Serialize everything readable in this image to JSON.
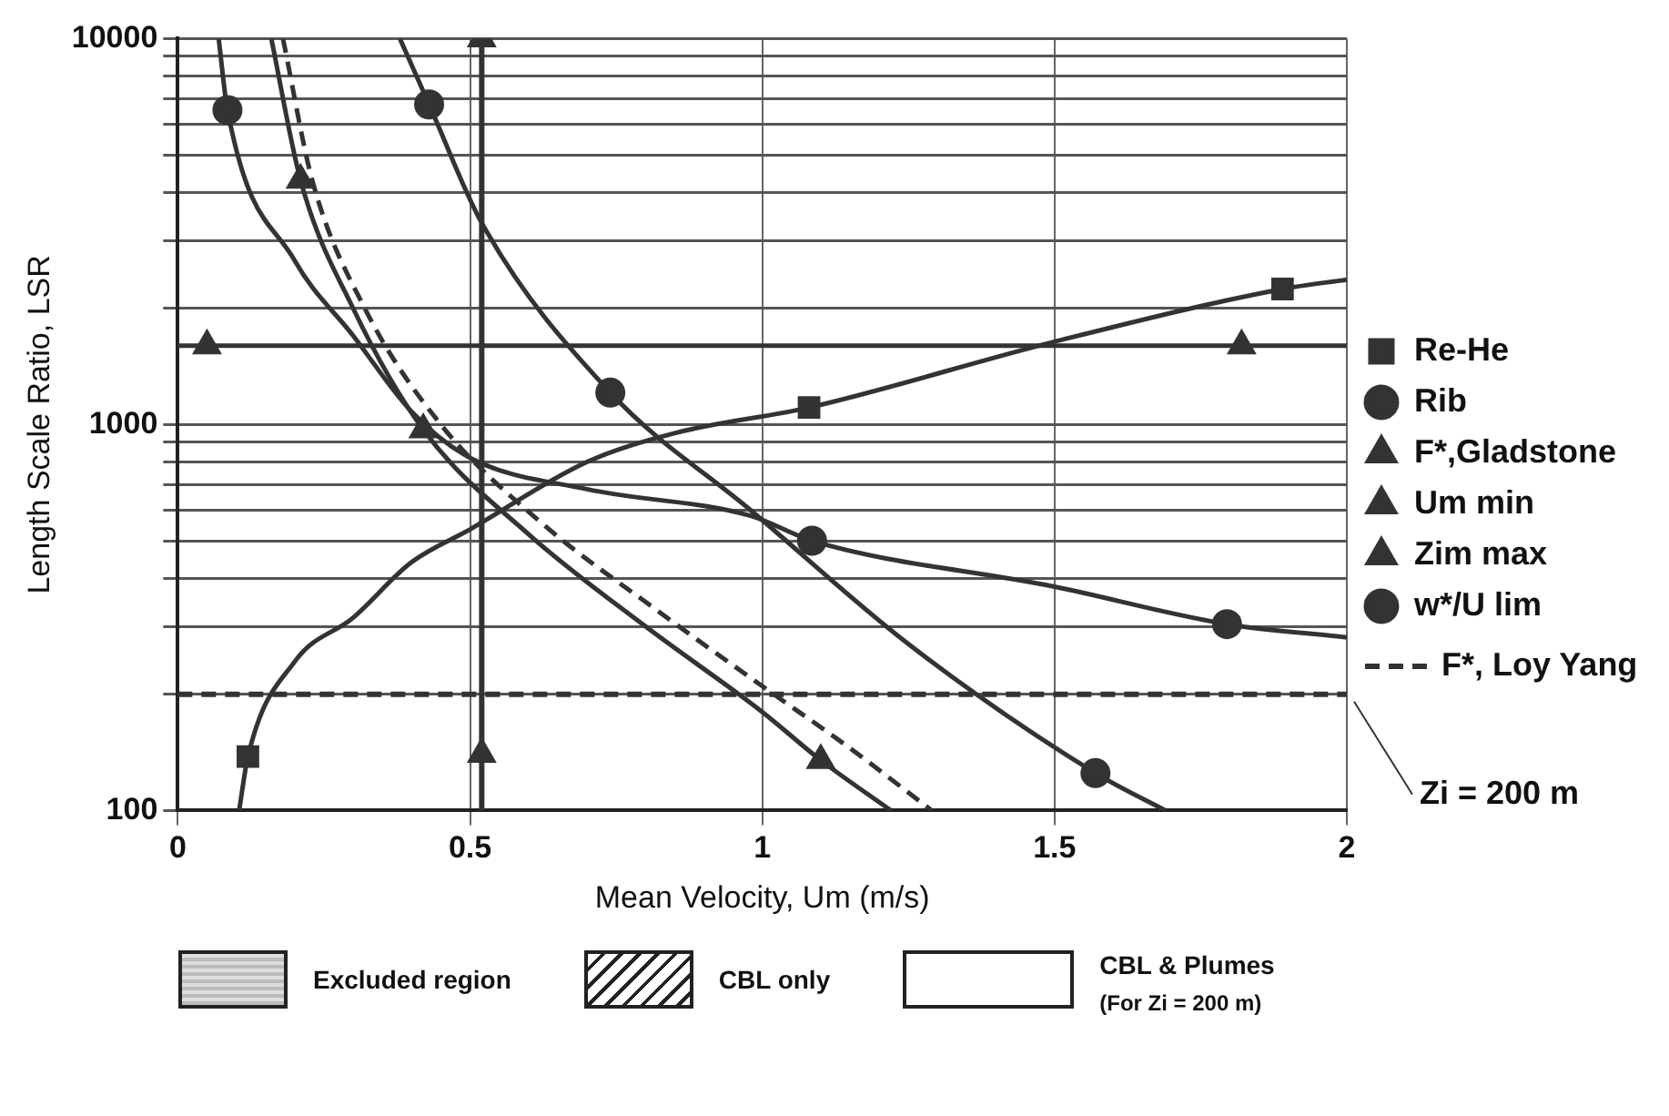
{
  "chart_data": {
    "type": "line",
    "xlabel": "Mean Velocity, Um (m/s)",
    "ylabel": "Length Scale Ratio, LSR",
    "xlim": [
      0,
      2
    ],
    "xticks": [
      0,
      0.5,
      1,
      1.5,
      2
    ],
    "ylim": [
      100,
      10000
    ],
    "log": true,
    "yticks": [
      100,
      {
        "value": 200,
        "label": null
      },
      {
        "value": 300,
        "label": null
      },
      {
        "value": 400,
        "label": null
      },
      {
        "value": 500,
        "label": null
      },
      {
        "value": 600,
        "label": null
      },
      {
        "value": 700,
        "label": null
      },
      {
        "value": 800,
        "label": null
      },
      {
        "value": 900,
        "label": null
      },
      1000,
      {
        "value": 2000,
        "label": null
      },
      {
        "value": 3000,
        "label": null
      },
      {
        "value": 4000,
        "label": null
      },
      {
        "value": 5000,
        "label": null
      },
      {
        "value": 6000,
        "label": null
      },
      {
        "value": 7000,
        "label": null
      },
      {
        "value": 8000,
        "label": null
      },
      {
        "value": 9000,
        "label": null
      },
      10000
    ],
    "grid": true,
    "legend": "right",
    "series": [
      {
        "name": "Re-He",
        "type": "scatter",
        "marker": "square",
        "color": "#333333",
        "x": [
          0.12,
          1.08,
          1.89
        ],
        "values": [
          138,
          1107,
          2245
        ]
      },
      {
        "type": "line",
        "marker": "none",
        "color": "#333333",
        "x": [
          0.105,
          0.12,
          0.2,
          0.3,
          0.4,
          0.5,
          0.7,
          0.85,
          1.08,
          1.5,
          1.89,
          2
        ],
        "values": [
          100,
          138,
          243,
          316,
          440,
          535,
          800,
          950,
          1107,
          1640,
          2245,
          2375
        ]
      },
      {
        "name": "Rib",
        "type": "scatter",
        "marker": "circle",
        "color": "#333333",
        "x": [
          0.085,
          1.085,
          1.795
        ],
        "values": [
          6530,
          500,
          304
        ]
      },
      {
        "type": "line",
        "marker": "none",
        "color": "#333333",
        "x": [
          0.07,
          0.085,
          0.2,
          0.3,
          0.4,
          0.5,
          0.7,
          0.98,
          1.085,
          1.5,
          1.795,
          2
        ],
        "values": [
          10000,
          6530,
          2660,
          1700,
          1080,
          820,
          680,
          580,
          500,
          380,
          304,
          281
        ]
      },
      {
        "name": "F*,Gladstone",
        "type": "scatter",
        "marker": "triangle",
        "color": "#333333",
        "x": [
          0.21,
          0.42,
          1.1
        ],
        "values": [
          4300,
          970,
          135
        ]
      },
      {
        "type": "line",
        "marker": "none",
        "color": "#333333",
        "x": [
          0.16,
          0.21,
          0.3,
          0.42,
          0.6,
          0.8,
          1.0,
          1.1,
          1.22
        ],
        "values": [
          10000,
          4300,
          2000,
          970,
          520,
          300,
          180,
          135,
          100
        ]
      },
      {
        "name": "Um min",
        "type": "scatter",
        "marker": "triangle",
        "color": "#333333",
        "x": [
          0.52,
          0.52
        ],
        "values": [
          10000,
          140
        ]
      },
      {
        "name": "Zim max",
        "type": "scatter",
        "marker": "triangle",
        "color": "#333333",
        "x": [
          0.05,
          1.82
        ],
        "values": [
          1600,
          1600
        ]
      },
      {
        "type": "line",
        "marker": "none",
        "color": "#333333",
        "x": [
          0,
          2
        ],
        "values": [
          1600,
          1600
        ]
      },
      {
        "name": "w*/U lim",
        "type": "scatter",
        "marker": "circle",
        "color": "#333333",
        "x": [
          0.43,
          0.74,
          1.57
        ],
        "values": [
          6750,
          1210,
          125
        ]
      },
      {
        "type": "line",
        "marker": "none",
        "color": "#333333",
        "x": [
          0.38,
          0.43,
          0.52,
          0.74,
          0.98,
          1.25,
          1.57,
          1.69
        ],
        "values": [
          10000,
          6750,
          3330,
          1210,
          600,
          270,
          125,
          100
        ]
      },
      {
        "name": "F*, Loy Yang",
        "type": "line",
        "marker": "none",
        "line_style": "dashed",
        "color": "#333333",
        "x": [
          0.18,
          0.23,
          0.32,
          0.45,
          0.62,
          0.82,
          1.0,
          1.15,
          1.29
        ],
        "values": [
          10000,
          4300,
          2000,
          1000,
          560,
          330,
          210,
          145,
          100
        ]
      }
    ],
    "ref_lines": [
      {
        "axis": "x",
        "value": 0.52,
        "line_style": "solid",
        "color": "#333333"
      },
      {
        "axis": "y",
        "value": 200,
        "label": "Zi = 200 m",
        "line_style": "dashed",
        "color": "#333333"
      }
    ],
    "annotations": [
      "Excluded region",
      "CBL only",
      "CBL & Plumes",
      "(For Zi = 200 m)"
    ]
  }
}
